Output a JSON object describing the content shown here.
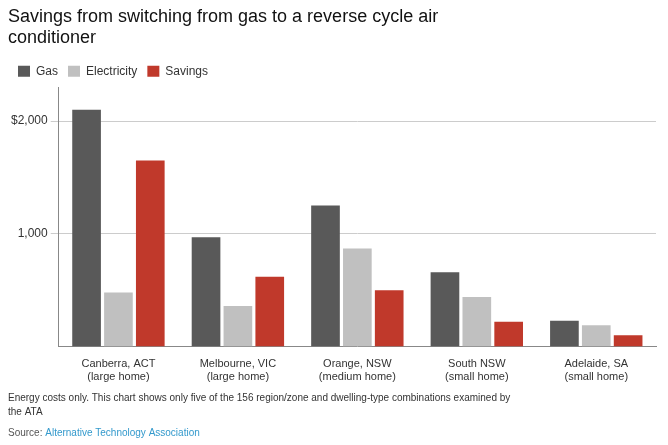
{
  "chart_data": {
    "type": "bar",
    "title": "Savings from switching from gas to a reverse cycle air\nconditioner",
    "categories": [
      "Canberra, ACT\n(large home)",
      "Melbourne, VIC\n(large home)",
      "Orange, NSW\n(medium home)",
      "South NSW\n(small home)",
      "Adelaide, SA\n(small home)"
    ],
    "series": [
      {
        "name": "Gas",
        "color": "#595959",
        "values": [
          2100,
          970,
          1250,
          660,
          230
        ]
      },
      {
        "name": "Electricity",
        "color": "#c0c0c0",
        "values": [
          480,
          360,
          870,
          440,
          190
        ]
      },
      {
        "name": "Savings",
        "color": "#c0392b",
        "values": [
          1650,
          620,
          500,
          220,
          100
        ]
      }
    ],
    "ylim": [
      0,
      2300
    ],
    "yticks": [
      {
        "value": 1000,
        "label": "1,000"
      },
      {
        "value": 2000,
        "label": "$2,000"
      }
    ],
    "grid": true,
    "legend": "top",
    "footnote": "Energy costs only. This chart shows only five of the 156 region/zone and dwelling-type combinations examined by\nthe ATA",
    "source_label": "Source:",
    "source": "Alternative Technology Association"
  }
}
